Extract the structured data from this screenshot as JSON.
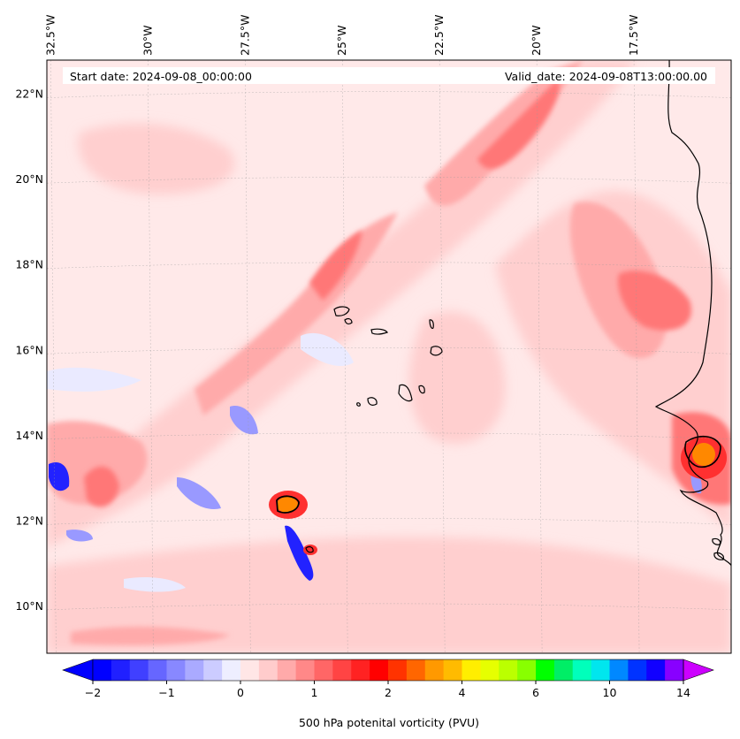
{
  "map": {
    "start_date_text": "Start date: 2024-09-08_00:00:00",
    "valid_date_text": "Valid_date: 2024-09-08T13:00:00.00",
    "extent": {
      "lon_min": -32.6,
      "lon_max": -15.0,
      "lat_min": 8.9,
      "lat_max": 22.8
    },
    "lon_ticks": [
      {
        "value": -32.5,
        "label": "32.5°W"
      },
      {
        "value": -30.0,
        "label": "30°W"
      },
      {
        "value": -27.5,
        "label": "27.5°W"
      },
      {
        "value": -25.0,
        "label": "25°W"
      },
      {
        "value": -22.5,
        "label": "22.5°W"
      },
      {
        "value": -20.0,
        "label": "20°W"
      },
      {
        "value": -17.5,
        "label": "17.5°W"
      }
    ],
    "lat_ticks": [
      {
        "value": 10,
        "label": "10°N"
      },
      {
        "value": 12,
        "label": "12°N"
      },
      {
        "value": 14,
        "label": "14°N"
      },
      {
        "value": 16,
        "label": "16°N"
      },
      {
        "value": 18,
        "label": "18°N"
      },
      {
        "value": 20,
        "label": "20°N"
      },
      {
        "value": 22,
        "label": "22°N"
      }
    ]
  },
  "colorbar": {
    "label": "500 hPa potenital vorticity (PVU)",
    "colors": [
      "#0000ff",
      "#2020ff",
      "#4040ff",
      "#6666ff",
      "#8888ff",
      "#aaaaff",
      "#ccccff",
      "#eeeeff",
      "#ffe6e6",
      "#ffcccc",
      "#ffaaaa",
      "#ff8888",
      "#ff6666",
      "#ff4444",
      "#ff2222",
      "#ff0000",
      "#ff3300",
      "#ff6600",
      "#ff9900",
      "#ffbb00",
      "#ffee00",
      "#e6ff00",
      "#bbff00",
      "#88ff00",
      "#00ff00",
      "#00ee66",
      "#00ffbb",
      "#00e6ee",
      "#0088ff",
      "#0033ff",
      "#1100ff",
      "#8800ff",
      "#cc00ff"
    ],
    "under_color": "#0000ff",
    "over_color": "#cc00ff",
    "ticks": [
      {
        "index": 1,
        "label": "−2"
      },
      {
        "index": 5,
        "label": "−1"
      },
      {
        "index": 9,
        "label": "0"
      },
      {
        "index": 13,
        "label": "1"
      },
      {
        "index": 17,
        "label": "2"
      },
      {
        "index": 21,
        "label": "4"
      },
      {
        "index": 25,
        "label": "6"
      },
      {
        "index": 29,
        "label": "10"
      },
      {
        "index": 33,
        "label": "14"
      }
    ]
  },
  "field_colors": {
    "base": "#ffe9e9",
    "light": "#ffcfcf",
    "medium": "#ffaaaa",
    "strong": "#ff7777",
    "core": "#ff3030",
    "hot": "#ff8800",
    "neg_light": "#eaeaff",
    "neg_mid": "#9999ff",
    "neg_strong": "#2222ff"
  }
}
